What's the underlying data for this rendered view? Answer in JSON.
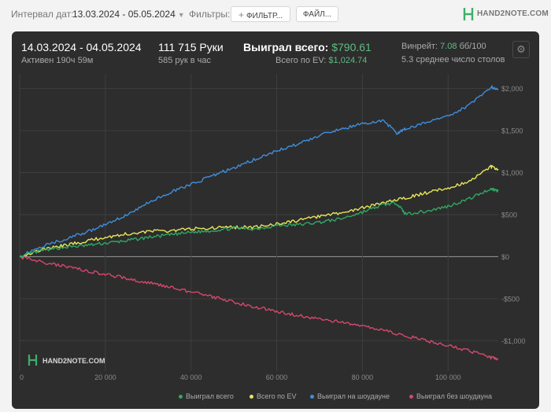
{
  "toolbar": {
    "date_label": "Интервал дат:",
    "date_value": "13.03.2024 - 05.05.2024",
    "filters_label": "Фильтры:",
    "filter_button": "ФИЛЬТР...",
    "file_button": "ФАЙЛ...",
    "logo": "HAND2NOTE.COM"
  },
  "stats": {
    "period": "14.03.2024 - 04.05.2024",
    "active": "Активен 190ч 59м",
    "hands": "111 715 Руки",
    "hands_per_hour": "585 рук в час",
    "won_label": "Выиграл всего:",
    "won_value": "$790.61",
    "ev_label": "Всего по EV:",
    "ev_value": "$1,024.74",
    "winrate_label": "Винрейт:",
    "winrate_value": "7.08",
    "winrate_unit": "бб/100",
    "tables": "5.3 среднее число столов"
  },
  "watermark": "HAND2NOTE.COM",
  "colors": {
    "won": "#2fa865",
    "ev": "#e8e65a",
    "showdown": "#3f8edc",
    "non_showdown": "#d6476e",
    "accent_green": "#5fbb82",
    "panel_bg": "#2d2d2d"
  },
  "chart_data": {
    "type": "line",
    "x_ticks": [
      0,
      20000,
      40000,
      60000,
      80000,
      100000
    ],
    "x_tick_labels": [
      "0",
      "20 000",
      "40 000",
      "60 000",
      "80 000",
      "100 000"
    ],
    "y_ticks": [
      -1000,
      -500,
      0,
      500,
      1000,
      1500,
      2000
    ],
    "y_tick_labels": [
      "-$1,000",
      "-$500",
      "$0",
      "$500",
      "$1,000",
      "$1,500",
      "$2,000"
    ],
    "xlim": [
      0,
      111715
    ],
    "ylim": [
      -1250,
      2100
    ],
    "grid": true,
    "legend_position": "bottom-right",
    "series": [
      {
        "name": "Выиграл всего",
        "color": "#2fa865",
        "x": [
          0,
          5000,
          10000,
          15000,
          20000,
          25000,
          30000,
          35000,
          40000,
          45000,
          50000,
          55000,
          60000,
          65000,
          70000,
          75000,
          80000,
          85000,
          88000,
          90000,
          95000,
          100000,
          105000,
          110000,
          111715
        ],
        "y": [
          0,
          70,
          110,
          130,
          160,
          190,
          230,
          260,
          290,
          310,
          340,
          330,
          370,
          380,
          410,
          450,
          530,
          620,
          640,
          510,
          540,
          600,
          690,
          810,
          780
        ]
      },
      {
        "name": "Всего по EV",
        "color": "#e8e65a",
        "x": [
          0,
          5000,
          10000,
          15000,
          20000,
          25000,
          30000,
          35000,
          40000,
          45000,
          50000,
          55000,
          60000,
          65000,
          70000,
          75000,
          80000,
          85000,
          90000,
          95000,
          100000,
          105000,
          110000,
          111715
        ],
        "y": [
          0,
          80,
          130,
          180,
          230,
          270,
          300,
          310,
          330,
          340,
          350,
          350,
          390,
          430,
          480,
          520,
          580,
          640,
          700,
          760,
          820,
          900,
          1070,
          1030
        ]
      },
      {
        "name": "Выиграл на шоудауне",
        "color": "#3f8edc",
        "x": [
          0,
          5000,
          10000,
          15000,
          20000,
          25000,
          30000,
          35000,
          40000,
          45000,
          50000,
          55000,
          60000,
          65000,
          70000,
          75000,
          80000,
          85000,
          88000,
          90000,
          95000,
          100000,
          105000,
          110000,
          111715
        ],
        "y": [
          0,
          120,
          200,
          280,
          380,
          500,
          640,
          760,
          860,
          960,
          1060,
          1160,
          1260,
          1340,
          1440,
          1520,
          1580,
          1620,
          1470,
          1520,
          1600,
          1680,
          1800,
          2020,
          1990
        ]
      },
      {
        "name": "Выиграл без шоудауна",
        "color": "#d6476e",
        "x": [
          0,
          5000,
          10000,
          15000,
          20000,
          25000,
          30000,
          35000,
          40000,
          45000,
          50000,
          55000,
          60000,
          65000,
          70000,
          75000,
          80000,
          85000,
          90000,
          95000,
          100000,
          105000,
          110000,
          111715
        ],
        "y": [
          0,
          -60,
          -110,
          -160,
          -210,
          -260,
          -310,
          -360,
          -420,
          -480,
          -540,
          -600,
          -650,
          -700,
          -740,
          -780,
          -830,
          -880,
          -940,
          -1000,
          -1060,
          -1120,
          -1200,
          -1220
        ]
      }
    ]
  }
}
